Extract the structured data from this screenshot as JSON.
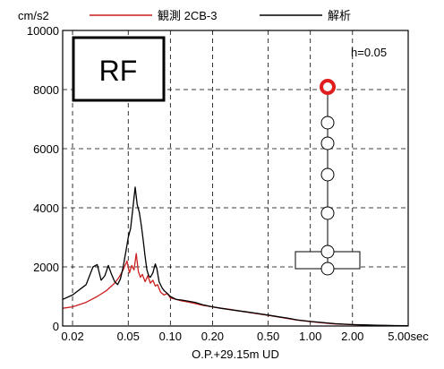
{
  "legend": {
    "unit": "cm/s2",
    "observed_label": "観測 2CB-3",
    "analysis_label": "解析"
  },
  "panel": {
    "floor_label": "RF",
    "damping_label": "h=0.05",
    "xlabel": "O.P.+29.15m  UD"
  },
  "colors": {
    "observed": "#cc1f1f",
    "analysis": "#000000",
    "marker_highlight": "#e01e1e",
    "grid": "#000000",
    "background": "#ffffff"
  },
  "chart_data": {
    "type": "line",
    "title": "",
    "xlabel": "O.P.+29.15m  UD",
    "ylabel": "cm/s2",
    "xscale": "log",
    "xlim": [
      0.017,
      5.0
    ],
    "ylim": [
      0,
      10000
    ],
    "grid": true,
    "legend_position": "top",
    "x_ticks": [
      0.02,
      0.05,
      0.1,
      0.2,
      0.5,
      1.0,
      2.0,
      5.0
    ],
    "x_tick_labels": [
      "0.02",
      "0.05",
      "0.10",
      "0.20",
      "0.50",
      "1.00",
      "2.00",
      "5.00sec"
    ],
    "y_ticks": [
      0,
      2000,
      4000,
      6000,
      8000,
      10000
    ],
    "y_tick_labels": [
      "0",
      "2000",
      "4000",
      "6000",
      "8000",
      "10000"
    ],
    "series": [
      {
        "name": "観測 2CB-3",
        "color": "#cc1f1f",
        "x": [
          0.017,
          0.02,
          0.025,
          0.03,
          0.035,
          0.04,
          0.043,
          0.046,
          0.049,
          0.051,
          0.053,
          0.055,
          0.057,
          0.059,
          0.061,
          0.063,
          0.066,
          0.069,
          0.072,
          0.075,
          0.078,
          0.081,
          0.085,
          0.09,
          0.095,
          0.1,
          0.11,
          0.12,
          0.13,
          0.15,
          0.17,
          0.2,
          0.23,
          0.27,
          0.3,
          0.35,
          0.4,
          0.5,
          0.6,
          0.7,
          0.8,
          1.0,
          1.2,
          1.5,
          2.0,
          2.5,
          3.0,
          4.0,
          5.0
        ],
        "y": [
          600,
          650,
          800,
          1000,
          1200,
          1450,
          1650,
          1900,
          2200,
          1800,
          2050,
          1900,
          2450,
          1850,
          1650,
          1750,
          1500,
          1700,
          1450,
          1550,
          1350,
          1400,
          1150,
          1050,
          1100,
          950,
          900,
          850,
          820,
          760,
          700,
          650,
          600,
          560,
          520,
          470,
          430,
          360,
          300,
          250,
          200,
          150,
          110,
          70,
          45,
          30,
          20,
          12,
          8
        ]
      },
      {
        "name": "解析",
        "color": "#000000",
        "x": [
          0.017,
          0.02,
          0.025,
          0.028,
          0.03,
          0.032,
          0.034,
          0.036,
          0.038,
          0.04,
          0.042,
          0.044,
          0.046,
          0.048,
          0.05,
          0.052,
          0.054,
          0.056,
          0.058,
          0.06,
          0.062,
          0.064,
          0.066,
          0.068,
          0.07,
          0.072,
          0.075,
          0.078,
          0.08,
          0.083,
          0.087,
          0.09,
          0.095,
          0.1,
          0.11,
          0.12,
          0.13,
          0.15,
          0.17,
          0.2,
          0.23,
          0.27,
          0.3,
          0.35,
          0.4,
          0.5,
          0.6,
          0.7,
          0.8,
          1.0,
          1.2,
          1.5,
          2.0,
          2.5,
          3.0,
          4.0,
          5.0
        ],
        "y": [
          900,
          1050,
          1400,
          2000,
          2080,
          1550,
          1700,
          2050,
          1750,
          1500,
          1400,
          1600,
          2000,
          2500,
          3000,
          3300,
          4000,
          4700,
          4100,
          3850,
          3400,
          2900,
          2350,
          1900,
          1700,
          1650,
          1800,
          2100,
          1950,
          1500,
          1300,
          1200,
          1100,
          1000,
          900,
          880,
          850,
          800,
          720,
          650,
          600,
          550,
          520,
          480,
          440,
          370,
          310,
          260,
          210,
          155,
          120,
          80,
          50,
          35,
          25,
          15,
          10
        ]
      }
    ]
  }
}
